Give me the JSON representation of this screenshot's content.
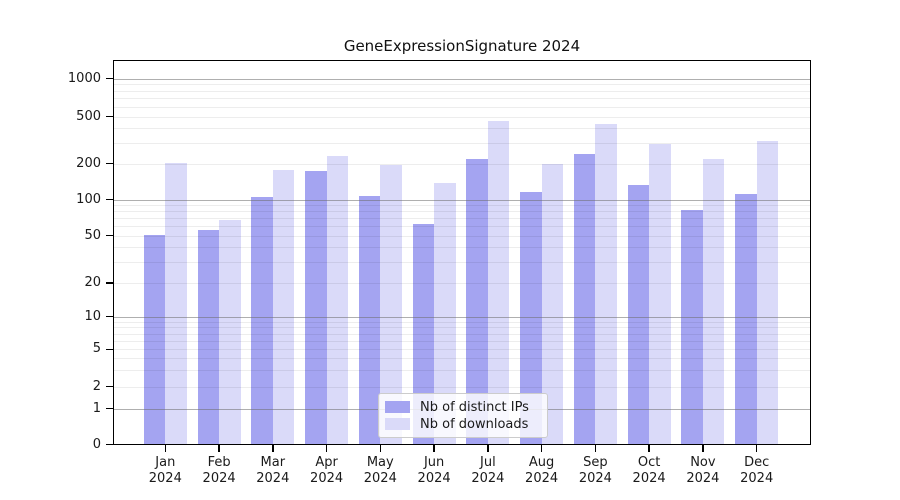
{
  "chart_data": {
    "type": "bar",
    "title": "GeneExpressionSignature 2024",
    "categories": [
      "Jan 2024",
      "Feb 2024",
      "Mar 2024",
      "Apr 2024",
      "May 2024",
      "Jun 2024",
      "Jul 2024",
      "Aug 2024",
      "Sep 2024",
      "Oct 2024",
      "Nov 2024",
      "Dec 2024"
    ],
    "series": [
      {
        "name": "Nb of distinct IPs",
        "color": "#a4a4f1",
        "values": [
          51,
          56,
          106,
          173,
          108,
          63,
          220,
          116,
          240,
          133,
          82,
          111
        ]
      },
      {
        "name": "Nb of downloads",
        "color": "#dadaf9",
        "values": [
          203,
          68,
          175,
          230,
          193,
          137,
          458,
          200,
          435,
          295,
          218,
          308
        ]
      }
    ],
    "y_ticks": [
      "0",
      "1",
      "2",
      "5",
      "10",
      "20",
      "50",
      "100",
      "200",
      "500",
      "1000"
    ],
    "y_scale": "log-like (1-2-5 sequence with 0 baseline)",
    "ylim": [
      0,
      1400
    ],
    "xlabel": "",
    "ylabel": "",
    "grid": "both (major solid at 1,10,100,1000; faint minors)",
    "legend_position": "lower center inside plot",
    "axis_color": "#000000",
    "major_grid_color": "#b0b0b0",
    "minor_grid_color": "#ededed",
    "background_color": "#ffffff"
  }
}
